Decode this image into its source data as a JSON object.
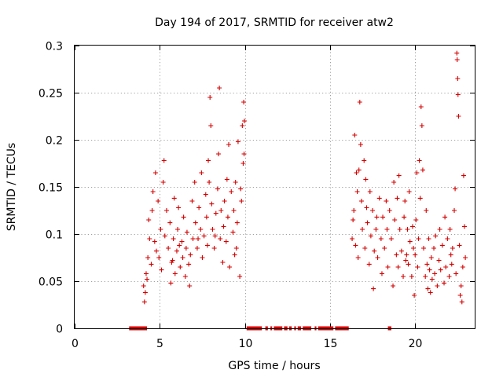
{
  "chart_data": {
    "type": "scatter",
    "title": "Day 194 of 2017, SRMTID for receiver atw2",
    "xlabel": "GPS time / hours",
    "ylabel": "SRMTID / TECUs",
    "xlim": [
      0,
      23.5
    ],
    "ylim": [
      0,
      0.3
    ],
    "x_ticks": [
      "0",
      "5",
      "10",
      "15",
      "20"
    ],
    "x_tick_values": [
      0,
      5,
      10,
      15,
      20
    ],
    "y_ticks": [
      "0",
      "0.05",
      "0.1",
      "0.15",
      "0.2",
      "0.25",
      "0.3"
    ],
    "y_tick_values": [
      0,
      0.05,
      0.1,
      0.15,
      0.2,
      0.25,
      0.3
    ],
    "grid": true,
    "marker": "plus",
    "color": "#d40000",
    "series": [
      {
        "name": "SRMTID",
        "points": [
          [
            4.05,
            0.045
          ],
          [
            4.1,
            0.028
          ],
          [
            4.15,
            0.038
          ],
          [
            4.2,
            0.058
          ],
          [
            4.25,
            0.052
          ],
          [
            4.3,
            0.075
          ],
          [
            4.35,
            0.115
          ],
          [
            4.4,
            0.095
          ],
          [
            4.5,
            0.068
          ],
          [
            4.55,
            0.125
          ],
          [
            4.6,
            0.145
          ],
          [
            4.7,
            0.092
          ],
          [
            4.75,
            0.165
          ],
          [
            4.8,
            0.082
          ],
          [
            4.9,
            0.135
          ],
          [
            4.95,
            0.075
          ],
          [
            5.05,
            0.105
          ],
          [
            5.1,
            0.062
          ],
          [
            5.2,
            0.155
          ],
          [
            5.25,
            0.178
          ],
          [
            5.3,
            0.098
          ],
          [
            5.4,
            0.125
          ],
          [
            5.5,
            0.085
          ],
          [
            5.6,
            0.112
          ],
          [
            5.65,
            0.048
          ],
          [
            5.7,
            0.07
          ],
          [
            5.8,
            0.095
          ],
          [
            5.85,
            0.138
          ],
          [
            5.9,
            0.058
          ],
          [
            6.0,
            0.082
          ],
          [
            6.05,
            0.105
          ],
          [
            6.1,
            0.128
          ],
          [
            6.2,
            0.065
          ],
          [
            6.3,
            0.092
          ],
          [
            6.35,
            0.075
          ],
          [
            6.4,
            0.118
          ],
          [
            6.5,
            0.055
          ],
          [
            6.55,
            0.085
          ],
          [
            6.6,
            0.102
          ],
          [
            6.7,
            0.068
          ],
          [
            6.75,
            0.045
          ],
          [
            6.8,
            0.078
          ],
          [
            6.9,
            0.135
          ],
          [
            6.95,
            0.095
          ],
          [
            7.05,
            0.155
          ],
          [
            7.1,
            0.112
          ],
          [
            7.2,
            0.085
          ],
          [
            7.3,
            0.128
          ],
          [
            7.4,
            0.105
          ],
          [
            7.45,
            0.165
          ],
          [
            7.5,
            0.075
          ],
          [
            7.6,
            0.098
          ],
          [
            7.7,
            0.142
          ],
          [
            7.75,
            0.118
          ],
          [
            7.8,
            0.088
          ],
          [
            7.85,
            0.178
          ],
          [
            7.9,
            0.155
          ],
          [
            7.95,
            0.245
          ],
          [
            8.0,
            0.215
          ],
          [
            8.05,
            0.132
          ],
          [
            8.1,
            0.105
          ],
          [
            8.2,
            0.085
          ],
          [
            8.3,
            0.122
          ],
          [
            8.4,
            0.148
          ],
          [
            8.45,
            0.185
          ],
          [
            8.5,
            0.255
          ],
          [
            8.55,
            0.095
          ],
          [
            8.6,
            0.125
          ],
          [
            8.7,
            0.07
          ],
          [
            8.75,
            0.108
          ],
          [
            8.8,
            0.135
          ],
          [
            8.9,
            0.092
          ],
          [
            8.95,
            0.158
          ],
          [
            9.0,
            0.118
          ],
          [
            9.05,
            0.195
          ],
          [
            9.1,
            0.065
          ],
          [
            9.2,
            0.145
          ],
          [
            9.3,
            0.102
          ],
          [
            9.35,
            0.125
          ],
          [
            9.4,
            0.078
          ],
          [
            9.45,
            0.155
          ],
          [
            9.5,
            0.085
          ],
          [
            9.55,
            0.112
          ],
          [
            9.6,
            0.198
          ],
          [
            9.7,
            0.055
          ],
          [
            9.75,
            0.148
          ],
          [
            9.8,
            0.135
          ],
          [
            9.85,
            0.215
          ],
          [
            9.9,
            0.175
          ],
          [
            9.93,
            0.24
          ],
          [
            9.95,
            0.185
          ],
          [
            9.97,
            0.22
          ],
          [
            6.15,
            0.088
          ],
          [
            7.25,
            0.095
          ],
          [
            8.25,
            0.098
          ],
          [
            5.75,
            0.072
          ],
          [
            16.3,
            0.095
          ],
          [
            16.35,
            0.115
          ],
          [
            16.4,
            0.125
          ],
          [
            16.45,
            0.205
          ],
          [
            16.5,
            0.088
          ],
          [
            16.55,
            0.165
          ],
          [
            16.6,
            0.145
          ],
          [
            16.65,
            0.075
          ],
          [
            16.7,
            0.168
          ],
          [
            16.75,
            0.24
          ],
          [
            16.8,
            0.195
          ],
          [
            16.85,
            0.135
          ],
          [
            16.9,
            0.105
          ],
          [
            17.0,
            0.178
          ],
          [
            17.05,
            0.085
          ],
          [
            17.1,
            0.158
          ],
          [
            17.15,
            0.128
          ],
          [
            17.2,
            0.112
          ],
          [
            17.3,
            0.068
          ],
          [
            17.35,
            0.145
          ],
          [
            17.4,
            0.098
          ],
          [
            17.5,
            0.125
          ],
          [
            17.55,
            0.042
          ],
          [
            17.6,
            0.082
          ],
          [
            17.7,
            0.105
          ],
          [
            17.75,
            0.118
          ],
          [
            17.8,
            0.075
          ],
          [
            17.9,
            0.138
          ],
          [
            18.0,
            0.095
          ],
          [
            18.05,
            0.058
          ],
          [
            18.1,
            0.118
          ],
          [
            18.2,
            0.085
          ],
          [
            18.3,
            0.135
          ],
          [
            18.35,
            0.105
          ],
          [
            18.4,
            0.065
          ],
          [
            18.5,
            0.125
          ],
          [
            18.6,
            0.095
          ],
          [
            18.7,
            0.045
          ],
          [
            18.75,
            0.155
          ],
          [
            18.8,
            0.115
          ],
          [
            18.9,
            0.078
          ],
          [
            18.95,
            0.138
          ],
          [
            19.0,
            0.065
          ],
          [
            19.05,
            0.162
          ],
          [
            19.1,
            0.105
          ],
          [
            19.2,
            0.082
          ],
          [
            19.3,
            0.055
          ],
          [
            19.35,
            0.118
          ],
          [
            19.4,
            0.135
          ],
          [
            19.5,
            0.078
          ],
          [
            19.55,
            0.105
          ],
          [
            19.6,
            0.068
          ],
          [
            19.65,
            0.145
          ],
          [
            19.7,
            0.092
          ],
          [
            19.8,
            0.055
          ],
          [
            19.85,
            0.108
          ],
          [
            19.9,
            0.085
          ],
          [
            19.95,
            0.035
          ],
          [
            20.0,
            0.078
          ],
          [
            20.05,
            0.115
          ],
          [
            20.1,
            0.165
          ],
          [
            20.15,
            0.065
          ],
          [
            20.2,
            0.095
          ],
          [
            20.25,
            0.178
          ],
          [
            20.3,
            0.138
          ],
          [
            20.35,
            0.235
          ],
          [
            20.4,
            0.215
          ],
          [
            20.45,
            0.168
          ],
          [
            20.5,
            0.085
          ],
          [
            20.6,
            0.055
          ],
          [
            20.65,
            0.125
          ],
          [
            20.7,
            0.068
          ],
          [
            20.75,
            0.042
          ],
          [
            20.8,
            0.095
          ],
          [
            20.9,
            0.038
          ],
          [
            20.95,
            0.075
          ],
          [
            21.0,
            0.052
          ],
          [
            21.1,
            0.085
          ],
          [
            21.15,
            0.058
          ],
          [
            21.2,
            0.098
          ],
          [
            21.3,
            0.045
          ],
          [
            21.4,
            0.072
          ],
          [
            21.45,
            0.105
          ],
          [
            21.5,
            0.062
          ],
          [
            21.6,
            0.088
          ],
          [
            21.7,
            0.048
          ],
          [
            21.75,
            0.118
          ],
          [
            21.8,
            0.065
          ],
          [
            21.9,
            0.095
          ],
          [
            22.0,
            0.055
          ],
          [
            22.05,
            0.105
          ],
          [
            22.1,
            0.078
          ],
          [
            22.15,
            0.068
          ],
          [
            22.2,
            0.085
          ],
          [
            22.3,
            0.125
          ],
          [
            22.35,
            0.148
          ],
          [
            22.4,
            0.058
          ],
          [
            22.45,
            0.292
          ],
          [
            22.47,
            0.285
          ],
          [
            22.5,
            0.265
          ],
          [
            22.52,
            0.248
          ],
          [
            22.55,
            0.225
          ],
          [
            22.6,
            0.088
          ],
          [
            22.65,
            0.035
          ],
          [
            22.7,
            0.045
          ],
          [
            22.75,
            0.028
          ],
          [
            22.8,
            0.065
          ],
          [
            22.85,
            0.162
          ],
          [
            22.9,
            0.108
          ],
          [
            22.95,
            0.075
          ],
          [
            20.85,
            0.062
          ],
          [
            19.45,
            0.072
          ]
        ]
      }
    ],
    "zero_markers": [
      [
        3.2,
        4.25
      ],
      [
        10.1,
        11.0
      ],
      [
        11.2,
        11.35
      ],
      [
        11.5,
        11.6
      ],
      [
        11.7,
        12.2
      ],
      [
        12.3,
        12.5
      ],
      [
        12.6,
        12.75
      ],
      [
        12.9,
        13.0
      ],
      [
        13.1,
        13.3
      ],
      [
        13.4,
        13.9
      ],
      [
        14.1,
        14.2
      ],
      [
        14.3,
        15.2
      ],
      [
        15.3,
        16.1
      ],
      [
        18.4,
        18.6
      ]
    ]
  }
}
